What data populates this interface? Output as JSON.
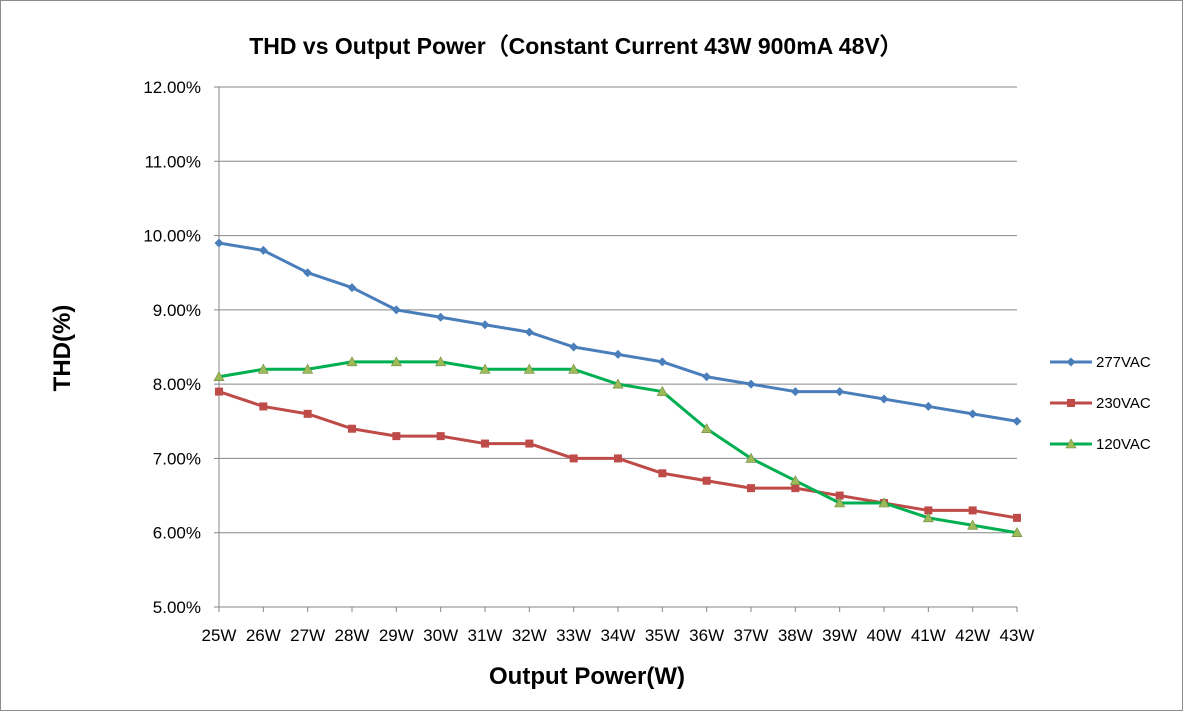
{
  "chart_data": {
    "type": "line",
    "title": "THD vs Output Power（Constant Current 43W  900mA 48V）",
    "xlabel": "Output Power(W)",
    "ylabel": "THD(%)",
    "ylim": [
      5.0,
      12.0
    ],
    "y_ticks": [
      "5.00%",
      "6.00%",
      "7.00%",
      "8.00%",
      "9.00%",
      "10.00%",
      "11.00%",
      "12.00%"
    ],
    "grid": "horizontal",
    "legend_position": "right",
    "categories": [
      "25W",
      "26W",
      "27W",
      "28W",
      "29W",
      "30W",
      "31W",
      "32W",
      "33W",
      "34W",
      "35W",
      "36W",
      "37W",
      "38W",
      "39W",
      "40W",
      "41W",
      "42W",
      "43W"
    ],
    "series": [
      {
        "name": "277VAC",
        "marker": "diamond",
        "color": "#4a7ebb",
        "values": [
          9.9,
          9.8,
          9.5,
          9.3,
          9.0,
          8.9,
          8.8,
          8.7,
          8.5,
          8.4,
          8.3,
          8.1,
          8.0,
          7.9,
          7.9,
          7.8,
          7.7,
          7.6,
          7.5
        ]
      },
      {
        "name": "230VAC",
        "marker": "square",
        "color": "#be4b48",
        "values": [
          7.9,
          7.7,
          7.6,
          7.4,
          7.3,
          7.3,
          7.2,
          7.2,
          7.0,
          7.0,
          6.8,
          6.7,
          6.6,
          6.6,
          6.5,
          6.4,
          6.3,
          6.3,
          6.2
        ]
      },
      {
        "name": "120VAC",
        "marker": "triangle",
        "color": "#00b050",
        "marker_color": "#9bbb59",
        "values": [
          8.1,
          8.2,
          8.2,
          8.3,
          8.3,
          8.3,
          8.2,
          8.2,
          8.2,
          8.0,
          7.9,
          7.4,
          7.0,
          6.7,
          6.4,
          6.4,
          6.2,
          6.1,
          6.0
        ]
      }
    ]
  }
}
